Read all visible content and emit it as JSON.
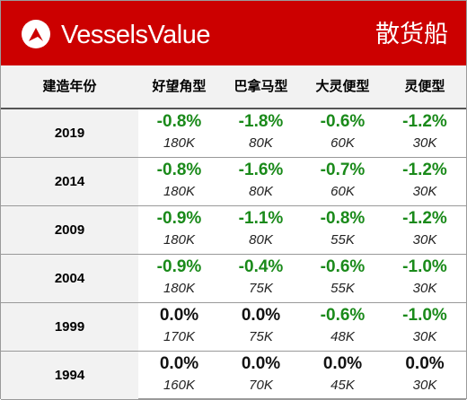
{
  "header": {
    "brand": "VesselsValue",
    "section_title": "散货船",
    "brand_color": "#cc0000"
  },
  "columns": {
    "year": "建造年份",
    "types": [
      "好望角型",
      "巴拿马型",
      "大灵便型",
      "灵便型"
    ]
  },
  "rows": [
    {
      "year": "2019",
      "cells": [
        {
          "change": "-0.8%",
          "size": "180K"
        },
        {
          "change": "-1.8%",
          "size": "80K"
        },
        {
          "change": "-0.6%",
          "size": "60K"
        },
        {
          "change": "-1.2%",
          "size": "30K"
        }
      ]
    },
    {
      "year": "2014",
      "cells": [
        {
          "change": "-0.8%",
          "size": "180K"
        },
        {
          "change": "-1.6%",
          "size": "80K"
        },
        {
          "change": "-0.7%",
          "size": "60K"
        },
        {
          "change": "-1.2%",
          "size": "30K"
        }
      ]
    },
    {
      "year": "2009",
      "cells": [
        {
          "change": "-0.9%",
          "size": "180K"
        },
        {
          "change": "-1.1%",
          "size": "80K"
        },
        {
          "change": "-0.8%",
          "size": "55K"
        },
        {
          "change": "-1.2%",
          "size": "30K"
        }
      ]
    },
    {
      "year": "2004",
      "cells": [
        {
          "change": "-0.9%",
          "size": "180K"
        },
        {
          "change": "-0.4%",
          "size": "75K"
        },
        {
          "change": "-0.6%",
          "size": "55K"
        },
        {
          "change": "-1.0%",
          "size": "30K"
        }
      ]
    },
    {
      "year": "1999",
      "cells": [
        {
          "change": "0.0%",
          "size": "170K"
        },
        {
          "change": "0.0%",
          "size": "75K"
        },
        {
          "change": "-0.6%",
          "size": "48K"
        },
        {
          "change": "-1.0%",
          "size": "30K"
        }
      ]
    },
    {
      "year": "1994",
      "cells": [
        {
          "change": "0.0%",
          "size": "160K"
        },
        {
          "change": "0.0%",
          "size": "70K"
        },
        {
          "change": "0.0%",
          "size": "45K"
        },
        {
          "change": "0.0%",
          "size": "30K"
        }
      ]
    }
  ],
  "colors": {
    "negative": "#1a8a1a",
    "zero": "#111111",
    "header_bg": "#f2f2f2"
  }
}
